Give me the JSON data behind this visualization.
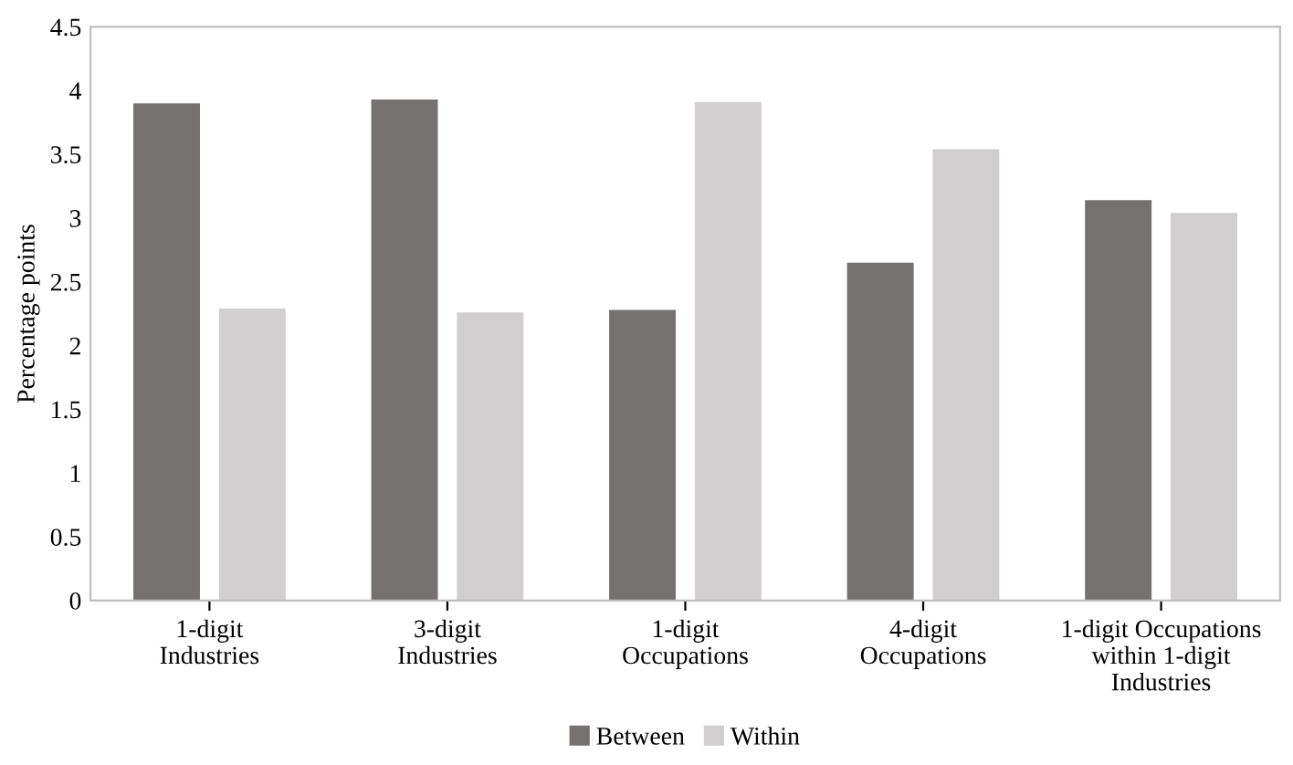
{
  "chart_data": {
    "type": "bar",
    "ylabel": "Percentage points",
    "categories": [
      "1-digit\nIndustries",
      "3-digit\nIndustries",
      "1-digit\nOccupations",
      "4-digit\nOccupations",
      "1-digit Occupations\nwithin 1-digit\nIndustries"
    ],
    "series": [
      {
        "name": "Between",
        "color": "#767171",
        "values": [
          3.9,
          3.93,
          2.28,
          2.65,
          3.14
        ]
      },
      {
        "name": "Within",
        "color": "#d0cece",
        "values": [
          2.29,
          2.26,
          3.91,
          3.54,
          3.04
        ]
      }
    ],
    "ylim": [
      0,
      4.5
    ],
    "yticks": [
      0,
      0.5,
      1,
      1.5,
      2,
      2.5,
      3,
      3.5,
      4,
      4.5
    ],
    "grid": false,
    "legend": "bottom"
  }
}
